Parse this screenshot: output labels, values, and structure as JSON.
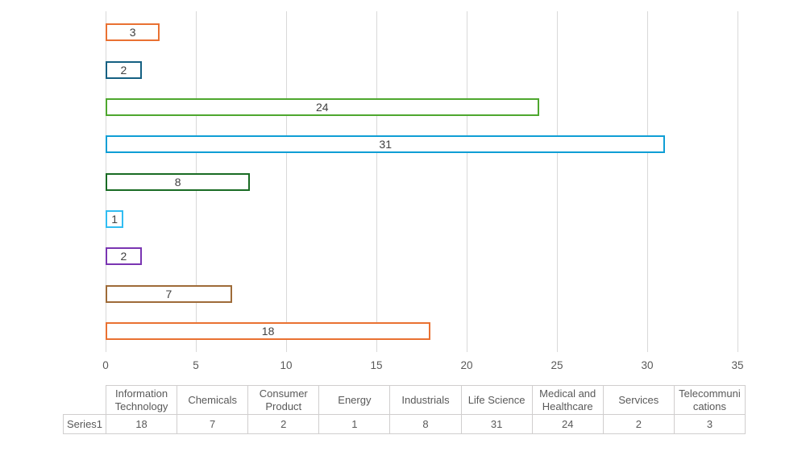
{
  "chart_data": {
    "type": "bar",
    "orientation": "horizontal",
    "title": "",
    "xlabel": "",
    "ylabel": "",
    "series_name": "Series1",
    "categories": [
      "Information Technology",
      "Chemicals",
      "Consumer Product",
      "Energy",
      "Industrials",
      "Life Science",
      "Medical and Healthcare",
      "Services",
      "Telecommunications"
    ],
    "values": [
      18,
      7,
      2,
      1,
      8,
      31,
      24,
      2,
      3
    ],
    "bar_colors": [
      "#E97132",
      "#9E6B38",
      "#7A35B2",
      "#31BDF2",
      "#196B24",
      "#0F9ED5",
      "#4EA72E",
      "#156082",
      "#E97132"
    ],
    "bar_fill": "#FFFFFF",
    "xlim": [
      0,
      35
    ],
    "x_ticks": [
      "0",
      "5",
      "10",
      "15",
      "20",
      "25",
      "30",
      "35"
    ],
    "grid": true,
    "legend_position": "none",
    "data_labels": "inside-center",
    "category_order_on_axis": "first-category-at-bottom",
    "data_table_shown": true
  },
  "colors": {
    "background": "#FFFFFF",
    "gridline": "#D9D9D9",
    "tick_mark": "#D9D9D9",
    "axis_text": "#595959",
    "bar_label_text": "#404040",
    "table_border": "#D0CECE",
    "table_text": "#595959"
  }
}
